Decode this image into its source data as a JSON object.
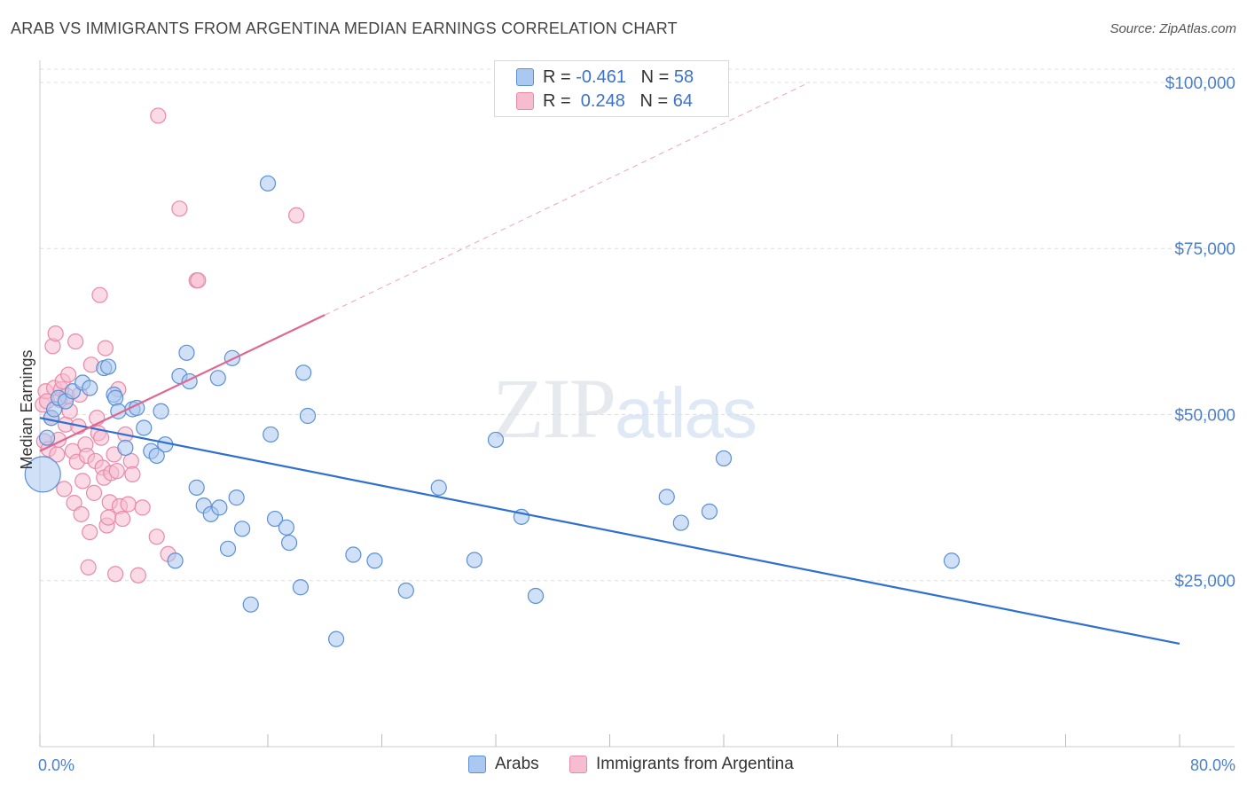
{
  "header": {
    "title": "ARAB VS IMMIGRANTS FROM ARGENTINA MEDIAN EARNINGS CORRELATION CHART",
    "source": "Source: ZipAtlas.com"
  },
  "legend": {
    "rows": [
      {
        "r_label": "R =",
        "r_value": "-0.461",
        "n_label": "N =",
        "n_value": "58"
      },
      {
        "r_label": "R =",
        "r_value": " 0.248",
        "n_label": "N =",
        "n_value": "64"
      }
    ]
  },
  "watermark": {
    "zip": "ZIP",
    "atlas": "atlas"
  },
  "colors": {
    "blue_fill": "#aac8f0",
    "blue_stroke": "#5b8fd6",
    "blue_line": "#2f6fd0",
    "pink_fill": "#f6bcd0",
    "pink_stroke": "#e88aa8",
    "pink_line": "#e0678f",
    "grid": "#dddddd",
    "tick_text": "#4a7fd0"
  },
  "chart_data": {
    "type": "scatter",
    "title": "ARAB VS IMMIGRANTS FROM ARGENTINA MEDIAN EARNINGS CORRELATION CHART",
    "xlabel": "",
    "ylabel": "Median Earnings",
    "xlim": [
      0,
      80
    ],
    "ylim": [
      0,
      102000
    ],
    "x_tick_labels": [
      "0.0%",
      "80.0%"
    ],
    "y_ticks": [
      25000,
      50000,
      75000,
      100000
    ],
    "y_tick_labels": [
      "$25,000",
      "$50,000",
      "$75,000",
      "$100,000"
    ],
    "grid": true,
    "legend_position": "top-center",
    "series": [
      {
        "name": "Arabs",
        "color": "#aac8f0",
        "trend": {
          "x": [
            0,
            80
          ],
          "y": [
            49500,
            15500
          ]
        },
        "points": [
          [
            0.2,
            41000
          ],
          [
            0.5,
            46500
          ],
          [
            0.8,
            49500
          ],
          [
            1.0,
            50800
          ],
          [
            1.3,
            52500
          ],
          [
            1.8,
            52000
          ],
          [
            2.3,
            53500
          ],
          [
            3.0,
            54800
          ],
          [
            3.5,
            54000
          ],
          [
            4.5,
            57000
          ],
          [
            4.8,
            57200
          ],
          [
            5.2,
            53000
          ],
          [
            5.3,
            52500
          ],
          [
            5.5,
            50500
          ],
          [
            6.0,
            45000
          ],
          [
            6.5,
            50800
          ],
          [
            6.8,
            51000
          ],
          [
            7.3,
            48000
          ],
          [
            7.8,
            44500
          ],
          [
            8.2,
            43800
          ],
          [
            8.5,
            50500
          ],
          [
            8.8,
            45500
          ],
          [
            9.5,
            28000
          ],
          [
            9.8,
            55800
          ],
          [
            10.3,
            59300
          ],
          [
            10.5,
            55000
          ],
          [
            11.0,
            39000
          ],
          [
            11.5,
            36300
          ],
          [
            12.0,
            35000
          ],
          [
            12.5,
            55500
          ],
          [
            12.6,
            36000
          ],
          [
            13.2,
            29800
          ],
          [
            13.5,
            58500
          ],
          [
            13.8,
            37500
          ],
          [
            14.2,
            32800
          ],
          [
            14.8,
            21400
          ],
          [
            16.0,
            84800
          ],
          [
            16.2,
            47000
          ],
          [
            16.5,
            34300
          ],
          [
            17.3,
            33000
          ],
          [
            17.5,
            30700
          ],
          [
            18.3,
            24000
          ],
          [
            18.5,
            56300
          ],
          [
            18.8,
            49800
          ],
          [
            20.8,
            16200
          ],
          [
            22.0,
            28900
          ],
          [
            23.5,
            28000
          ],
          [
            25.7,
            23500
          ],
          [
            28.0,
            39000
          ],
          [
            30.5,
            28100
          ],
          [
            32.0,
            46200
          ],
          [
            33.8,
            34600
          ],
          [
            34.8,
            22700
          ],
          [
            44.0,
            37600
          ],
          [
            45.0,
            33700
          ],
          [
            47.0,
            35400
          ],
          [
            48.0,
            43400
          ],
          [
            64.0,
            28000
          ]
        ],
        "sizes": {
          "0.2,41000": "large"
        }
      },
      {
        "name": "Immigrants from Argentina",
        "color": "#f6bcd0",
        "trend": {
          "x": [
            0,
            20
          ],
          "y": [
            44500,
            65000
          ],
          "dashed_extension": {
            "x": [
              20,
              54
            ],
            "y": [
              65000,
              100000
            ]
          }
        },
        "points": [
          [
            0.2,
            51500
          ],
          [
            0.3,
            46000
          ],
          [
            0.4,
            53500
          ],
          [
            0.5,
            52000
          ],
          [
            0.6,
            44800
          ],
          [
            0.8,
            49500
          ],
          [
            0.9,
            60300
          ],
          [
            1.0,
            54000
          ],
          [
            1.1,
            62200
          ],
          [
            1.2,
            44000
          ],
          [
            1.3,
            46200
          ],
          [
            1.4,
            52200
          ],
          [
            1.5,
            53800
          ],
          [
            1.6,
            55000
          ],
          [
            1.7,
            38800
          ],
          [
            1.8,
            48500
          ],
          [
            1.9,
            52800
          ],
          [
            2.0,
            56000
          ],
          [
            2.1,
            50500
          ],
          [
            2.3,
            44500
          ],
          [
            2.4,
            36700
          ],
          [
            2.5,
            61000
          ],
          [
            2.6,
            42900
          ],
          [
            2.7,
            48200
          ],
          [
            2.8,
            53000
          ],
          [
            2.9,
            35000
          ],
          [
            3.0,
            40000
          ],
          [
            3.2,
            45500
          ],
          [
            3.3,
            43800
          ],
          [
            3.4,
            27000
          ],
          [
            3.5,
            32300
          ],
          [
            3.6,
            57500
          ],
          [
            3.8,
            38200
          ],
          [
            3.9,
            43000
          ],
          [
            4.0,
            49500
          ],
          [
            4.1,
            47200
          ],
          [
            4.2,
            68000
          ],
          [
            4.3,
            46500
          ],
          [
            4.4,
            42000
          ],
          [
            4.5,
            40500
          ],
          [
            4.6,
            60000
          ],
          [
            4.7,
            33300
          ],
          [
            4.8,
            34500
          ],
          [
            4.9,
            36800
          ],
          [
            5.0,
            41200
          ],
          [
            5.2,
            44000
          ],
          [
            5.3,
            26000
          ],
          [
            5.4,
            41500
          ],
          [
            5.5,
            53800
          ],
          [
            5.6,
            36200
          ],
          [
            5.8,
            34300
          ],
          [
            6.0,
            47000
          ],
          [
            6.2,
            36500
          ],
          [
            6.4,
            43000
          ],
          [
            6.5,
            41000
          ],
          [
            6.9,
            25800
          ],
          [
            7.2,
            36000
          ],
          [
            8.2,
            31600
          ],
          [
            8.3,
            95000
          ],
          [
            9.0,
            29000
          ],
          [
            9.8,
            81000
          ],
          [
            11.0,
            70200
          ],
          [
            11.1,
            70200
          ],
          [
            18.0,
            80000
          ]
        ]
      }
    ]
  },
  "bottom_legend": {
    "items": [
      {
        "label": "Arabs"
      },
      {
        "label": "Immigrants from Argentina"
      }
    ]
  }
}
